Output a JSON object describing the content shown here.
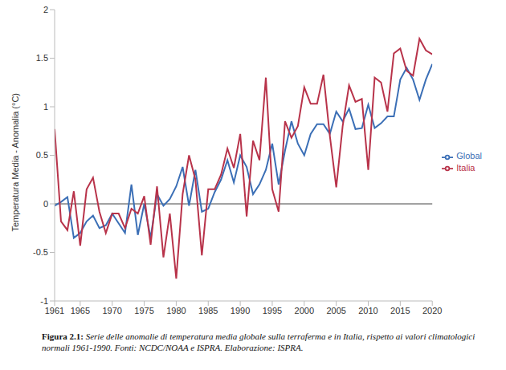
{
  "chart_data": {
    "type": "line",
    "y_label": "Temperatura Media - Anomalia (°C)",
    "caption_label": "Figura 2.1:",
    "caption": "Serie delle anomalie di temperatura media globale sulla terraferma e in Italia, rispetto ai valori climatologici normali 1961-1990. Fonti: NCDC/NOAA e ISPRA. Elaborazione: ISPRA.",
    "x": [
      1961,
      1962,
      1963,
      1964,
      1965,
      1966,
      1967,
      1968,
      1969,
      1970,
      1971,
      1972,
      1973,
      1974,
      1975,
      1976,
      1977,
      1978,
      1979,
      1980,
      1981,
      1982,
      1983,
      1984,
      1985,
      1986,
      1987,
      1988,
      1989,
      1990,
      1991,
      1992,
      1993,
      1994,
      1995,
      1996,
      1997,
      1998,
      1999,
      2000,
      2001,
      2002,
      2003,
      2004,
      2005,
      2006,
      2007,
      2008,
      2009,
      2010,
      2011,
      2012,
      2013,
      2014,
      2015,
      2016,
      2017,
      2018,
      2019,
      2020
    ],
    "series": [
      {
        "name": "Global",
        "color": "#3b6fb6",
        "values": [
          -0.02,
          0.02,
          0.07,
          -0.35,
          -0.3,
          -0.18,
          -0.12,
          -0.25,
          -0.22,
          -0.1,
          -0.2,
          -0.3,
          0.2,
          -0.32,
          0.0,
          -0.35,
          0.1,
          -0.02,
          0.05,
          0.18,
          0.38,
          -0.02,
          0.35,
          -0.08,
          -0.05,
          0.12,
          0.25,
          0.45,
          0.22,
          0.5,
          0.38,
          0.1,
          0.2,
          0.35,
          0.62,
          0.2,
          0.55,
          0.85,
          0.62,
          0.5,
          0.72,
          0.82,
          0.82,
          0.72,
          0.95,
          0.85,
          0.98,
          0.77,
          0.78,
          1.02,
          0.78,
          0.83,
          0.9,
          0.9,
          1.28,
          1.4,
          1.28,
          1.07,
          1.28,
          1.44
        ]
      },
      {
        "name": "Italia",
        "color": "#b8334a",
        "values": [
          0.77,
          -0.18,
          -0.27,
          0.13,
          -0.43,
          0.15,
          0.27,
          -0.08,
          -0.3,
          -0.1,
          -0.1,
          -0.25,
          -0.05,
          -0.1,
          0.08,
          -0.42,
          0.18,
          -0.55,
          -0.1,
          -0.77,
          0.1,
          0.5,
          0.25,
          -0.53,
          0.15,
          0.15,
          0.3,
          0.57,
          0.37,
          0.72,
          -0.13,
          0.65,
          0.45,
          1.3,
          0.15,
          -0.08,
          0.85,
          0.68,
          0.8,
          1.2,
          1.03,
          1.03,
          1.33,
          0.7,
          0.17,
          0.8,
          1.22,
          1.05,
          1.08,
          0.35,
          1.3,
          1.25,
          0.95,
          1.55,
          1.6,
          1.37,
          1.32,
          1.7,
          1.58,
          1.54
        ]
      }
    ],
    "xlim": [
      1961,
      2020
    ],
    "xticks": [
      1961,
      1965,
      1970,
      1975,
      1980,
      1985,
      1990,
      1995,
      2000,
      2005,
      2010,
      2015,
      2020
    ],
    "ylim": [
      -1,
      2
    ],
    "yticks": [
      -1,
      -0.5,
      0,
      0.5,
      1,
      1.5,
      2
    ],
    "grid": false,
    "legend": "right"
  }
}
